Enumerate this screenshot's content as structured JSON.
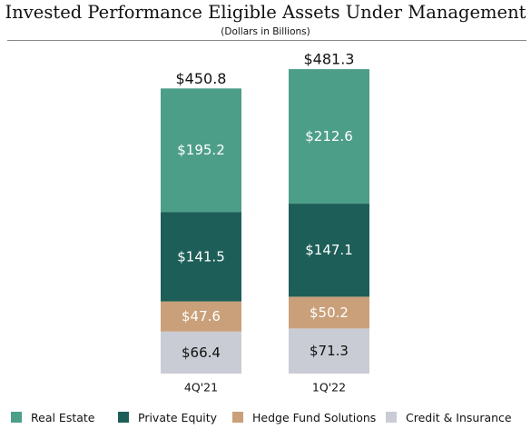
{
  "chart_data": {
    "type": "bar",
    "stacked": true,
    "title": "Invested Performance Eligible Assets Under Management",
    "subtitle": "(Dollars in Billions)",
    "categories": [
      "4Q'21",
      "1Q'22"
    ],
    "series": [
      {
        "name": "Credit & Insurance",
        "values": [
          66.4,
          71.3
        ],
        "labels": [
          "$66.4",
          "$71.3"
        ],
        "color": "#c9ccd4",
        "label_color": "#111111"
      },
      {
        "name": "Hedge Fund Solutions",
        "values": [
          47.6,
          50.2
        ],
        "labels": [
          "$47.6",
          "$50.2"
        ],
        "color": "#c9a07a",
        "label_color": "#ffffff"
      },
      {
        "name": "Private Equity",
        "values": [
          141.5,
          147.1
        ],
        "labels": [
          "$141.5",
          "$147.1"
        ],
        "color": "#1e5e58",
        "label_color": "#ffffff"
      },
      {
        "name": "Real Estate",
        "values": [
          195.2,
          212.6
        ],
        "labels": [
          "$195.2",
          "$212.6"
        ],
        "color": "#4d9e89",
        "label_color": "#ffffff"
      }
    ],
    "totals": [
      450.8,
      481.3
    ],
    "total_labels": [
      "$450.8",
      "$481.3"
    ],
    "legend": [
      "Real Estate",
      "Private Equity",
      "Hedge Fund Solutions",
      "Credit & Insurance"
    ],
    "legend_position": "bottom",
    "grid": false
  }
}
